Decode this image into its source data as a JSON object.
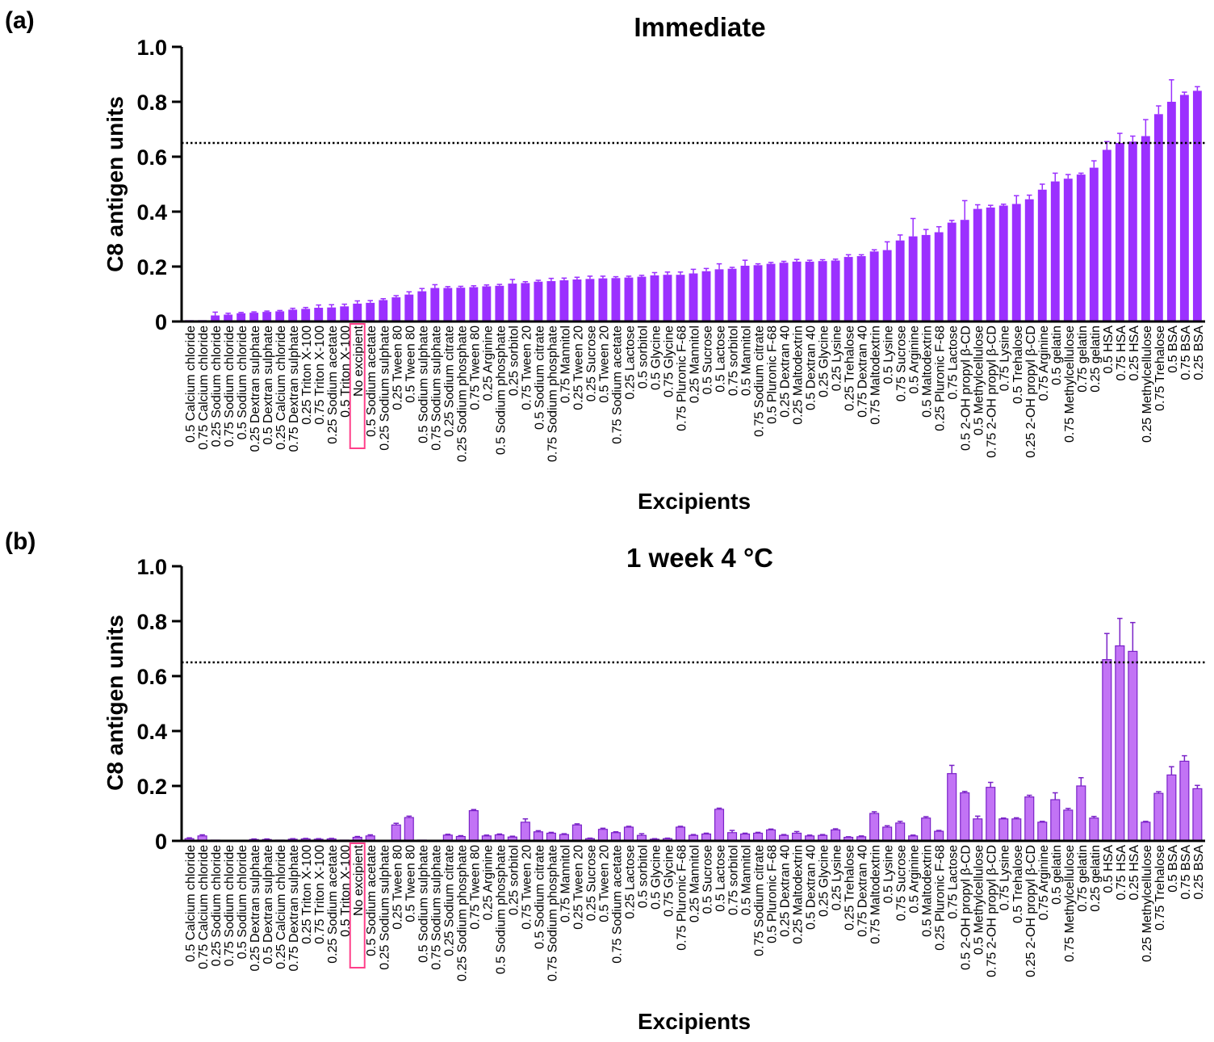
{
  "colors": {
    "bar_a": "#9b30ff",
    "bar_b": "#c273f5",
    "bar_b_edge": "#7a22c8",
    "highlight": "#ff3f8a",
    "axis": "#000000"
  },
  "chart_data": [
    {
      "panel_label": "(a)",
      "type": "bar",
      "title": "Immediate",
      "xlabel": "Excipients",
      "ylabel": "C8 antigen units",
      "ylim": [
        0,
        1.0
      ],
      "yticks": [
        "0",
        "0.2",
        "0.4",
        "0.6",
        "0.8",
        "1.0"
      ],
      "threshold": 0.65,
      "highlight": "No excipient",
      "categories": [
        "0.5 Calcium chloride",
        "0.75 Calcium chloride",
        "0.25 Sodium chloride",
        "0.75 Sodium chloride",
        "0.5 Sodium chloride",
        "0.25 Dextran sulphate",
        "0.5 Dextran sulphate",
        "0.25 Calcium chloride",
        "0.75 Dextran sulphate",
        "0.25 Triton X-100",
        "0.75 Triton X-100",
        "0.25 Sodium acetate",
        "0.5 Triton X-100",
        "No excipient",
        "0.5 Sodium acetate",
        "0.25 Sodium sulphate",
        "0.25 Tween 80",
        "0.5 Tween 80",
        "0.5 Sodium sulphate",
        "0.75 Sodium sulphate",
        "0.25 Sodium citrate",
        "0.25 Sodium phosphate",
        "0.75 Tween 80",
        "0.25 Arginine",
        "0.5 Sodium phosphate",
        "0.25 sorbitol",
        "0.75 Tween 20",
        "0.5 Sodium citrate",
        "0.75 Sodium phosphate",
        "0.75 Mannitol",
        "0.25 Tween 20",
        "0.25 Sucrose",
        "0.5 Tween 20",
        "0.75 Sodium acetate",
        "0.25 Lactose",
        "0.5 sorbitol",
        "0.5 Glycine",
        "0.75 Glycine",
        "0.75 Pluronic F-68",
        "0.25 Mannitol",
        "0.5 Sucrose",
        "0.5 Lactose",
        "0.75 sorbitol",
        "0.5 Mannitol",
        "0.75 Sodium citrate",
        "0.5 Pluronic F-68",
        "0.25 Dextran 40",
        "0.25 Maltodextrin",
        "0.5 Dextran 40",
        "0.25 Glycine",
        "0.25 Lysine",
        "0.25 Trehalose",
        "0.75 Dextran 40",
        "0.75 Maltodextrin",
        "0.5 Lysine",
        "0.75 Sucrose",
        "0.5 Arginine",
        "0.5 Maltodextrin",
        "0.25 Pluronic F-68",
        "0.75 Lactose",
        "0.5 2-OH propyl β-CD",
        "0.5 Methylcellulose",
        "0.75 2-OH propyl β-CD",
        "0.75 Lysine",
        "0.5 Trehalose",
        "0.25 2-OH propyl β-CD",
        "0.75 Arginine",
        "0.5 gelatin",
        "0.75 Methylcellulose",
        "0.75 gelatin",
        "0.25 gelatin",
        "0.5 HSA",
        "0.75 HSA",
        "0.25 HSA",
        "0.25 Methylcellulose",
        "0.75 Trehalose",
        "0.5 BSA",
        "0.75 BSA",
        "0.25 BSA"
      ],
      "values": [
        0.005,
        0.005,
        0.022,
        0.025,
        0.03,
        0.032,
        0.035,
        0.037,
        0.043,
        0.046,
        0.05,
        0.051,
        0.055,
        0.065,
        0.068,
        0.078,
        0.088,
        0.098,
        0.11,
        0.122,
        0.122,
        0.123,
        0.125,
        0.128,
        0.13,
        0.138,
        0.14,
        0.145,
        0.147,
        0.15,
        0.153,
        0.155,
        0.157,
        0.158,
        0.16,
        0.163,
        0.168,
        0.17,
        0.17,
        0.175,
        0.183,
        0.19,
        0.192,
        0.203,
        0.205,
        0.21,
        0.214,
        0.218,
        0.218,
        0.22,
        0.222,
        0.235,
        0.238,
        0.255,
        0.26,
        0.295,
        0.31,
        0.315,
        0.325,
        0.36,
        0.37,
        0.41,
        0.415,
        0.422,
        0.428,
        0.445,
        0.48,
        0.51,
        0.52,
        0.535,
        0.56,
        0.625,
        0.65,
        0.655,
        0.675,
        0.755,
        0.8,
        0.825,
        0.84
      ],
      "errors": [
        0,
        0,
        0.012,
        0.005,
        0.003,
        0.003,
        0.003,
        0.003,
        0.005,
        0.005,
        0.01,
        0.01,
        0.008,
        0.01,
        0.008,
        0.005,
        0.006,
        0.01,
        0.01,
        0.012,
        0.005,
        0.005,
        0.005,
        0.005,
        0.005,
        0.015,
        0.005,
        0.005,
        0.01,
        0.008,
        0.008,
        0.01,
        0.008,
        0.005,
        0.005,
        0.005,
        0.01,
        0.01,
        0.01,
        0.015,
        0.01,
        0.02,
        0.005,
        0.02,
        0.005,
        0.005,
        0.005,
        0.008,
        0.005,
        0.005,
        0.005,
        0.008,
        0.005,
        0.006,
        0.03,
        0.02,
        0.065,
        0.02,
        0.02,
        0.008,
        0.07,
        0.015,
        0.008,
        0.005,
        0.03,
        0.015,
        0.02,
        0.03,
        0.015,
        0.005,
        0.025,
        0.03,
        0.035,
        0.02,
        0.06,
        0.03,
        0.08,
        0.01,
        0.015
      ]
    },
    {
      "panel_label": "(b)",
      "type": "bar",
      "title": "1 week 4 °C",
      "xlabel": "Excipients",
      "ylabel": "C8 antigen units",
      "ylim": [
        0,
        1.0
      ],
      "yticks": [
        "0",
        "0.2",
        "0.4",
        "0.6",
        "0.8",
        "1.0"
      ],
      "threshold": 0.65,
      "highlight": "No excipient",
      "categories": [
        "0.5 Calcium chloride",
        "0.75 Calcium chloride",
        "0.25 Sodium chloride",
        "0.75 Sodium chloride",
        "0.5 Sodium chloride",
        "0.25 Dextran sulphate",
        "0.5 Dextran sulphate",
        "0.25 Calcium chloride",
        "0.75 Dextran sulphate",
        "0.25 Triton X-100",
        "0.75 Triton X-100",
        "0.25 Sodium acetate",
        "0.5 Triton X-100",
        "No excipient",
        "0.5 Sodium acetate",
        "0.25 Sodium sulphate",
        "0.25 Tween 80",
        "0.5 Tween 80",
        "0.5 Sodium sulphate",
        "0.75 Sodium sulphate",
        "0.25 Sodium citrate",
        "0.25 Sodium phosphate",
        "0.75 Tween 80",
        "0.25 Arginine",
        "0.5 Sodium phosphate",
        "0.25 sorbitol",
        "0.75 Tween 20",
        "0.5 Sodium citrate",
        "0.75 Sodium phosphate",
        "0.75 Mannitol",
        "0.25 Tween 20",
        "0.25 Sucrose",
        "0.5 Tween 20",
        "0.75 Sodium acetate",
        "0.25 Lactose",
        "0.5 sorbitol",
        "0.5 Glycine",
        "0.75 Glycine",
        "0.75 Pluronic F-68",
        "0.25 Mannitol",
        "0.5 Sucrose",
        "0.5 Lactose",
        "0.75 sorbitol",
        "0.5 Mannitol",
        "0.75 Sodium citrate",
        "0.5 Pluronic F-68",
        "0.25 Dextran 40",
        "0.25 Maltodextrin",
        "0.5 Dextran 40",
        "0.25 Glycine",
        "0.25 Lysine",
        "0.25 Trehalose",
        "0.75 Dextran 40",
        "0.75 Maltodextrin",
        "0.5 Lysine",
        "0.75 Sucrose",
        "0.5 Arginine",
        "0.5 Maltodextrin",
        "0.25 Pluronic F-68",
        "0.75 Lactose",
        "0.5 2-OH propyl β-CD",
        "0.5 Methylcellulose",
        "0.75 2-OH propyl β-CD",
        "0.75 Lysine",
        "0.5 Trehalose",
        "0.25 2-OH propyl β-CD",
        "0.75 Arginine",
        "0.5 gelatin",
        "0.75 Methylcellulose",
        "0.75 gelatin",
        "0.25 gelatin",
        "0.5 HSA",
        "0.75 HSA",
        "0.25 HSA",
        "0.25 Methylcellulose",
        "0.75 Trehalose",
        "0.5 BSA",
        "0.75 BSA",
        "0.25 BSA"
      ],
      "values": [
        0.008,
        0.018,
        0.003,
        0.002,
        0.002,
        0.005,
        0.005,
        0.003,
        0.006,
        0.007,
        0.006,
        0.007,
        0.003,
        0.013,
        0.018,
        0.002,
        0.058,
        0.085,
        0.003,
        0.002,
        0.021,
        0.016,
        0.11,
        0.018,
        0.022,
        0.014,
        0.068,
        0.033,
        0.028,
        0.023,
        0.058,
        0.008,
        0.042,
        0.03,
        0.05,
        0.02,
        0.006,
        0.008,
        0.05,
        0.02,
        0.025,
        0.115,
        0.03,
        0.025,
        0.028,
        0.04,
        0.02,
        0.028,
        0.018,
        0.02,
        0.04,
        0.013,
        0.015,
        0.1,
        0.05,
        0.065,
        0.018,
        0.083,
        0.035,
        0.245,
        0.175,
        0.08,
        0.195,
        0.08,
        0.08,
        0.16,
        0.068,
        0.15,
        0.112,
        0.2,
        0.083,
        0.66,
        0.71,
        0.69,
        0.068,
        0.173,
        0.24,
        0.29,
        0.19
      ],
      "errors": [
        0.003,
        0.004,
        0,
        0,
        0,
        0.002,
        0.002,
        0,
        0.002,
        0.002,
        0.002,
        0.002,
        0,
        0.003,
        0.004,
        0,
        0.006,
        0.005,
        0,
        0,
        0.003,
        0.003,
        0.004,
        0.003,
        0.003,
        0.003,
        0.012,
        0.004,
        0.003,
        0.003,
        0.004,
        0.002,
        0.004,
        0.003,
        0.003,
        0.006,
        0.002,
        0.002,
        0.003,
        0.003,
        0.003,
        0.004,
        0.008,
        0.003,
        0.003,
        0.003,
        0.003,
        0.006,
        0.003,
        0.003,
        0.004,
        0.002,
        0.003,
        0.006,
        0.005,
        0.006,
        0.003,
        0.005,
        0.003,
        0.03,
        0.005,
        0.01,
        0.018,
        0.003,
        0.004,
        0.006,
        0.003,
        0.025,
        0.006,
        0.03,
        0.006,
        0.095,
        0.1,
        0.105,
        0.003,
        0.006,
        0.03,
        0.02,
        0.012
      ]
    }
  ]
}
